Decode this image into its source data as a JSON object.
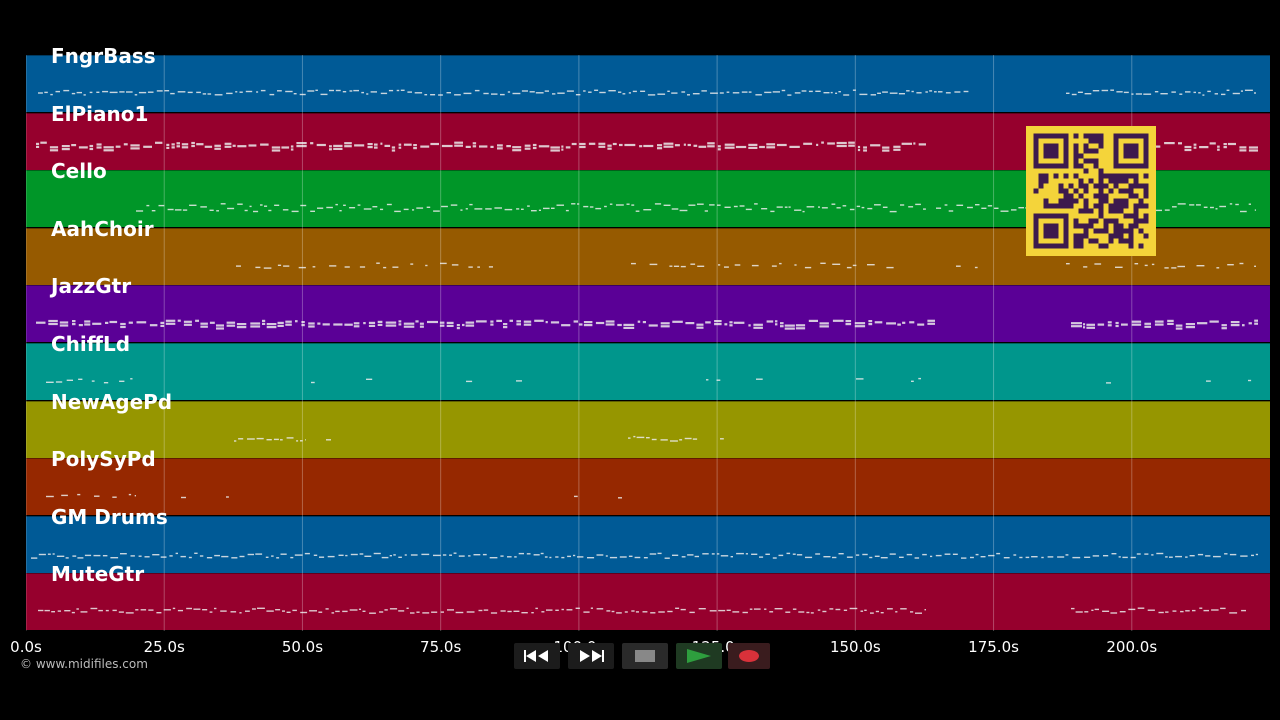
{
  "player": {
    "tracks": [
      {
        "name": "FngrBass",
        "color": "#005a96"
      },
      {
        "name": "ElPiano1",
        "color": "#96002d"
      },
      {
        "name": "Cello",
        "color": "#009628"
      },
      {
        "name": "AahChoir",
        "color": "#965a00"
      },
      {
        "name": "JazzGtr",
        "color": "#5a0096"
      },
      {
        "name": "ChiffLd",
        "color": "#00968c"
      },
      {
        "name": "NewAgePd",
        "color": "#969600"
      },
      {
        "name": "PolySyPd",
        "color": "#962800"
      },
      {
        "name": "GM Drums",
        "color": "#005a96"
      },
      {
        "name": "MuteGtr",
        "color": "#96002d"
      }
    ],
    "axis_ticks": [
      {
        "seconds": 0,
        "label": "0.0s"
      },
      {
        "seconds": 25,
        "label": "25.0s"
      },
      {
        "seconds": 50,
        "label": "50.0s"
      },
      {
        "seconds": 75,
        "label": "75.0s"
      },
      {
        "seconds": 100,
        "label": "100.0s"
      },
      {
        "seconds": 125,
        "label": "125.0s"
      },
      {
        "seconds": 150,
        "label": "150.0s"
      },
      {
        "seconds": 175,
        "label": "175.0s"
      },
      {
        "seconds": 200,
        "label": "200.0s"
      }
    ],
    "timeline_max_seconds": 225,
    "copyright": "© www.midifiles.com",
    "transport": {
      "rewind_icon": "rewind-icon",
      "forward_icon": "fast-forward-icon",
      "stop_icon": "stop-icon",
      "play_icon": "play-icon",
      "record_icon": "record-icon",
      "play_color": "#2e9e3e",
      "record_color": "#d9313a"
    }
  }
}
